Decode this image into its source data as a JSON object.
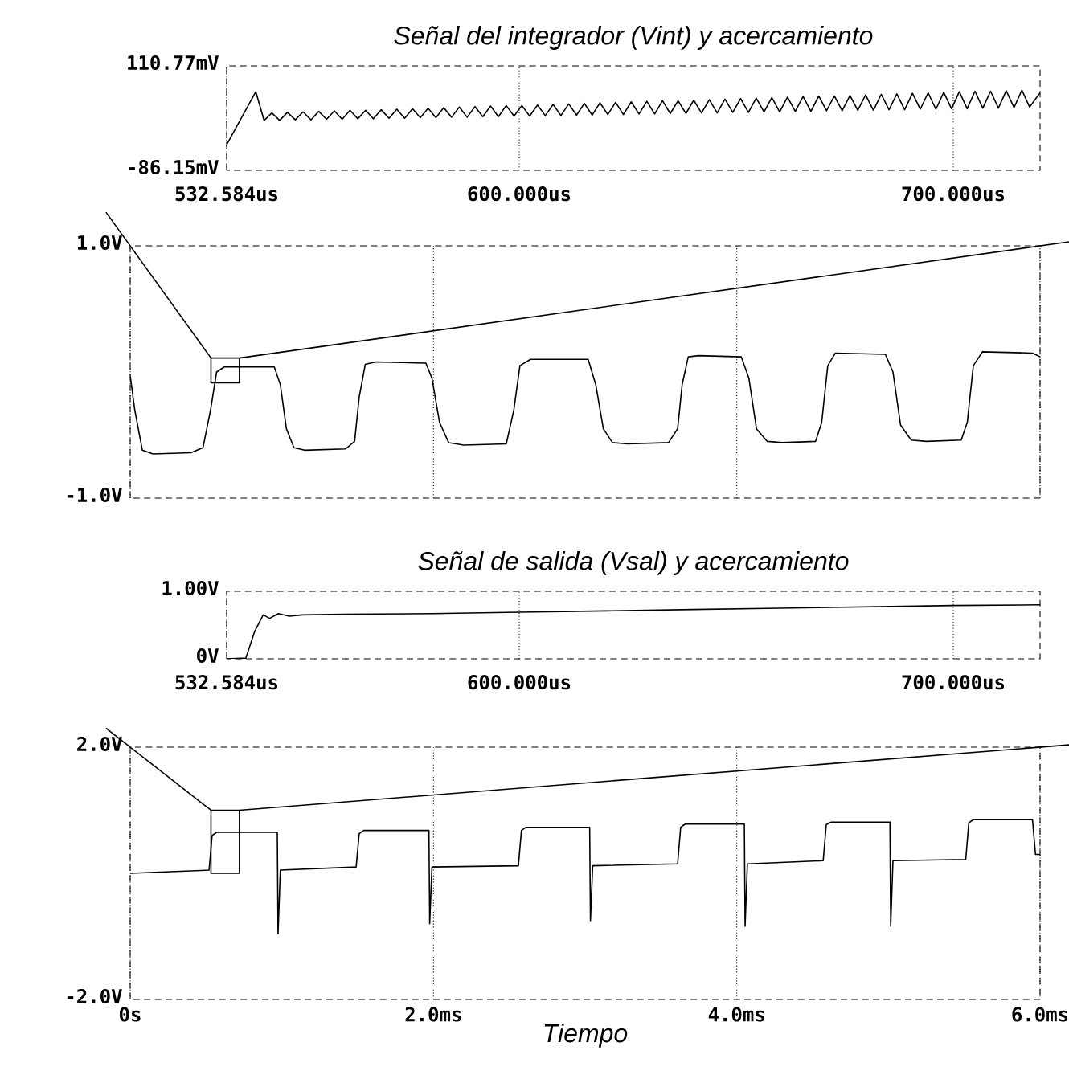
{
  "chart_data": [
    {
      "type": "line",
      "title": "Señal del integrador (Vint) y acercamiento",
      "color": "#000000",
      "grid": "x",
      "xlim": [
        532.584,
        720
      ],
      "ylim": [
        -86.15,
        110.77
      ],
      "xticks": [
        {
          "value": 532.584,
          "label": "532.584us"
        },
        {
          "value": 600,
          "label": "600.000us"
        },
        {
          "value": 700,
          "label": "700.000us"
        }
      ],
      "yticks": [
        {
          "value": -86.15,
          "label": "-86.15mV"
        },
        {
          "value": 110.77,
          "label": "110.77mV"
        }
      ],
      "x": [
        532.584,
        539.3,
        541.2,
        543.0,
        544.8,
        546.6,
        548.4,
        550.2,
        552.0,
        553.8,
        555.6,
        557.4,
        559.2,
        561.0,
        562.8,
        564.6,
        566.4,
        568.2,
        570.0,
        571.8,
        573.6,
        575.4,
        577.2,
        579.0,
        580.8,
        582.6,
        584.4,
        586.2,
        588.0,
        589.8,
        591.6,
        593.4,
        595.2,
        597.0,
        598.8,
        600.6,
        602.4,
        604.2,
        606.0,
        607.8,
        609.6,
        611.4,
        613.2,
        615.0,
        616.8,
        618.6,
        620.4,
        622.2,
        624.0,
        625.8,
        627.6,
        629.4,
        631.2,
        633.0,
        634.8,
        636.6,
        638.4,
        640.2,
        642.0,
        643.8,
        645.6,
        647.4,
        649.2,
        651.0,
        652.8,
        654.6,
        656.4,
        658.2,
        660.0,
        661.8,
        663.6,
        665.4,
        667.2,
        669.0,
        670.8,
        672.6,
        674.4,
        676.2,
        678.0,
        679.8,
        681.6,
        683.4,
        685.2,
        687.0,
        688.8,
        690.6,
        692.4,
        694.2,
        696.0,
        697.8,
        699.6,
        701.4,
        703.2,
        705.0,
        706.8,
        708.6,
        710.4,
        712.2,
        714.0,
        715.8,
        717.6,
        720
      ],
      "values": [
        -38,
        62,
        8,
        22,
        8,
        23,
        9,
        24,
        9,
        25,
        10,
        26,
        10,
        27,
        11,
        27,
        11,
        28,
        12,
        29,
        12,
        30,
        13,
        31,
        13,
        32,
        14,
        33,
        14,
        34,
        15,
        35,
        15,
        36,
        16,
        36,
        16,
        37,
        17,
        38,
        17,
        39,
        18,
        40,
        18,
        41,
        19,
        42,
        19,
        43,
        20,
        44,
        20,
        45,
        21,
        45,
        21,
        46,
        22,
        47,
        22,
        48,
        23,
        49,
        23,
        50,
        24,
        51,
        24,
        52,
        25,
        53,
        25,
        54,
        26,
        54,
        26,
        55,
        27,
        56,
        27,
        57,
        28,
        58,
        28,
        59,
        29,
        60,
        29,
        61,
        30,
        62,
        30,
        63,
        31,
        63,
        31,
        64,
        32,
        65,
        33,
        60
      ]
    },
    {
      "type": "line",
      "color": "#000000",
      "grid": "x",
      "tick_labels": "y",
      "xlim": [
        0,
        6
      ],
      "ylim": [
        -1,
        1
      ],
      "xticks": [
        0,
        2,
        4,
        6
      ],
      "yticks": [
        {
          "value": -1,
          "label": "-1.0V"
        },
        {
          "value": 1,
          "label": "1.0V"
        }
      ],
      "x": [
        0,
        0.03,
        0.08,
        0.15,
        0.4,
        0.48,
        0.53,
        0.57,
        0.62,
        0.95,
        0.99,
        1.03,
        1.08,
        1.15,
        1.42,
        1.48,
        1.51,
        1.55,
        1.62,
        1.95,
        1.99,
        2.04,
        2.1,
        2.2,
        2.48,
        2.53,
        2.57,
        2.64,
        3.02,
        3.07,
        3.12,
        3.18,
        3.28,
        3.55,
        3.61,
        3.64,
        3.68,
        3.75,
        4.03,
        4.08,
        4.13,
        4.2,
        4.3,
        4.52,
        4.56,
        4.6,
        4.65,
        4.98,
        5.03,
        5.08,
        5.15,
        5.25,
        5.48,
        5.52,
        5.56,
        5.62,
        5.95,
        6.0
      ],
      "values": [
        -0.03,
        -0.3,
        -0.62,
        -0.65,
        -0.64,
        -0.6,
        -0.3,
        0.0,
        0.04,
        0.04,
        -0.1,
        -0.45,
        -0.6,
        -0.62,
        -0.61,
        -0.55,
        -0.2,
        0.06,
        0.08,
        0.07,
        -0.05,
        -0.4,
        -0.56,
        -0.58,
        -0.57,
        -0.3,
        0.05,
        0.1,
        0.1,
        -0.1,
        -0.45,
        -0.56,
        -0.57,
        -0.56,
        -0.45,
        -0.1,
        0.12,
        0.13,
        0.12,
        -0.05,
        -0.45,
        -0.55,
        -0.56,
        -0.55,
        -0.4,
        0.05,
        0.15,
        0.14,
        0.0,
        -0.42,
        -0.54,
        -0.55,
        -0.54,
        -0.4,
        0.05,
        0.16,
        0.15,
        0.12
      ]
    },
    {
      "type": "line",
      "title": "Señal de salida (Vsal) y acercamiento",
      "color": "#000000",
      "grid": "x",
      "xlim": [
        532.584,
        720
      ],
      "ylim": [
        0,
        1
      ],
      "xticks": [
        {
          "value": 532.584,
          "label": "532.584us"
        },
        {
          "value": 600,
          "label": "600.000us"
        },
        {
          "value": 700,
          "label": "700.000us"
        }
      ],
      "yticks": [
        {
          "value": 0,
          "label": "0V"
        },
        {
          "value": 1,
          "label": "1.00V"
        }
      ],
      "x": [
        532.584,
        537,
        539,
        541,
        542.5,
        544.5,
        547,
        550,
        560,
        580,
        600,
        620,
        640,
        660,
        680,
        700,
        720
      ],
      "values": [
        0,
        0.01,
        0.4,
        0.65,
        0.6,
        0.67,
        0.63,
        0.65,
        0.66,
        0.67,
        0.69,
        0.71,
        0.73,
        0.75,
        0.77,
        0.79,
        0.8
      ]
    },
    {
      "type": "line",
      "xlabel": "Tiempo",
      "color": "#000000",
      "grid": "x",
      "xlim": [
        0,
        6
      ],
      "ylim": [
        -2,
        2
      ],
      "xticks": [
        {
          "value": 0,
          "label": "0s"
        },
        {
          "value": 2,
          "label": "2.0ms"
        },
        {
          "value": 4,
          "label": "4.0ms"
        },
        {
          "value": 6,
          "label": "6.0ms"
        }
      ],
      "yticks": [
        {
          "value": -2,
          "label": "-2.0V"
        },
        {
          "value": 2,
          "label": "2.0V"
        }
      ],
      "x": [
        0,
        0.52,
        0.54,
        0.57,
        0.97,
        0.975,
        0.99,
        1.49,
        1.51,
        1.54,
        1.97,
        1.975,
        1.99,
        2.56,
        2.58,
        2.61,
        3.03,
        3.035,
        3.05,
        3.61,
        3.63,
        3.66,
        4.05,
        4.055,
        4.07,
        4.57,
        4.59,
        4.62,
        5.01,
        5.015,
        5.03,
        5.51,
        5.53,
        5.56,
        5.95,
        5.97,
        6.0
      ],
      "values": [
        0.0,
        0.05,
        0.6,
        0.65,
        0.65,
        -0.96,
        0.05,
        0.1,
        0.63,
        0.68,
        0.68,
        -0.8,
        0.1,
        0.12,
        0.68,
        0.73,
        0.73,
        -0.75,
        0.12,
        0.15,
        0.73,
        0.78,
        0.78,
        -0.84,
        0.15,
        0.2,
        0.77,
        0.81,
        0.81,
        -0.84,
        0.2,
        0.22,
        0.8,
        0.85,
        0.85,
        0.3,
        0.3
      ]
    }
  ]
}
